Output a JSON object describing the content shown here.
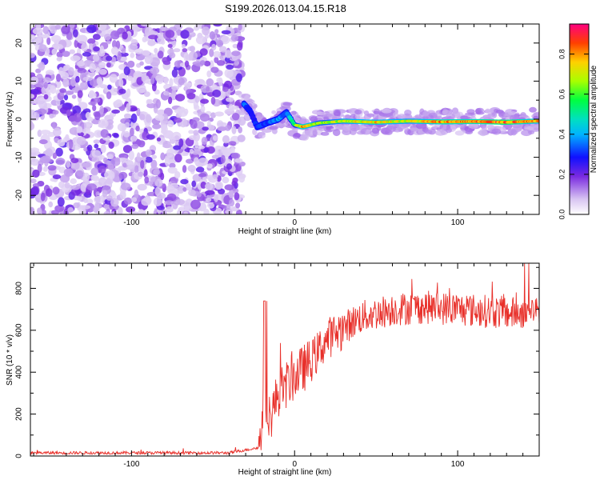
{
  "title": "S199.2026.013.04.15.R18",
  "chart_data": [
    {
      "type": "heatmap",
      "xlabel": "Height of straight line (km)",
      "ylabel": "Frequency (Hz)",
      "xlim": [
        -162,
        150
      ],
      "ylim": [
        -25,
        25
      ],
      "xticks": [
        -100,
        0,
        100
      ],
      "yticks": [
        -20,
        -10,
        0,
        10,
        20
      ],
      "colorbar": {
        "label": "Normalized spectral amplitude",
        "range": [
          0,
          0.95
        ],
        "ticks": [
          "0.0",
          "0.2",
          "0.4",
          "0.6",
          "0.8"
        ]
      },
      "description_data": {
        "noise_region_x": [
          -162,
          -32
        ],
        "signal_region_x": [
          -32,
          150
        ],
        "signal_frequency_hz": [
          {
            "x": -30,
            "f": 3.5,
            "amp": 0.35
          },
          {
            "x": -27,
            "f": 2.0,
            "amp": 0.3
          },
          {
            "x": -23,
            "f": -2.0,
            "amp": 0.3
          },
          {
            "x": -17,
            "f": -1.0,
            "amp": 0.35
          },
          {
            "x": -10,
            "f": 0.0,
            "amp": 0.4
          },
          {
            "x": -5,
            "f": 1.8,
            "amp": 0.35
          },
          {
            "x": 0,
            "f": -1.5,
            "amp": 0.6
          },
          {
            "x": 5,
            "f": -2.0,
            "amp": 0.85
          },
          {
            "x": 15,
            "f": -1.0,
            "amp": 0.7
          },
          {
            "x": 30,
            "f": -0.5,
            "amp": 0.75
          },
          {
            "x": 50,
            "f": -0.8,
            "amp": 0.8
          },
          {
            "x": 70,
            "f": -0.5,
            "amp": 0.75
          },
          {
            "x": 90,
            "f": -0.7,
            "amp": 0.85
          },
          {
            "x": 110,
            "f": -0.6,
            "amp": 0.85
          },
          {
            "x": 130,
            "f": -0.8,
            "amp": 0.9
          },
          {
            "x": 148,
            "f": -0.5,
            "amp": 0.8
          }
        ]
      }
    },
    {
      "type": "line",
      "xlabel": "Height of straight line (km)",
      "ylabel": "SNR (10 * v/v)",
      "xlim": [
        -162,
        150
      ],
      "ylim": [
        0,
        920
      ],
      "xticks": [
        -100,
        0,
        100
      ],
      "yticks": [
        0,
        200,
        400,
        600,
        800
      ],
      "color": "#e8302a",
      "envelope": [
        {
          "x": -162,
          "y": 15
        },
        {
          "x": -40,
          "y": 15
        },
        {
          "x": -22,
          "y": 40
        },
        {
          "x": -18,
          "y": 300
        },
        {
          "x": -15,
          "y": 180
        },
        {
          "x": -10,
          "y": 300
        },
        {
          "x": 0,
          "y": 380
        },
        {
          "x": 10,
          "y": 450
        },
        {
          "x": 20,
          "y": 560
        },
        {
          "x": 40,
          "y": 660
        },
        {
          "x": 60,
          "y": 700
        },
        {
          "x": 80,
          "y": 710
        },
        {
          "x": 100,
          "y": 700
        },
        {
          "x": 120,
          "y": 690
        },
        {
          "x": 135,
          "y": 680
        },
        {
          "x": 150,
          "y": 700
        }
      ],
      "noise_amplitude": 90,
      "peak_y": 920
    }
  ]
}
